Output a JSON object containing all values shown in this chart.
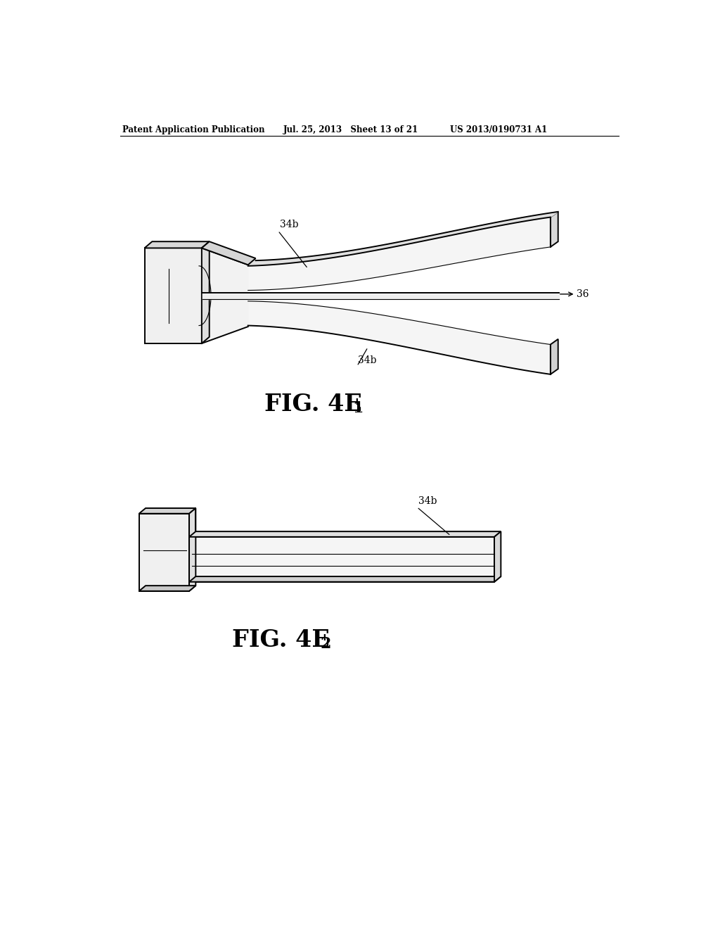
{
  "bg_color": "#ffffff",
  "header_left": "Patent Application Publication",
  "header_center": "Jul. 25, 2013   Sheet 13 of 21",
  "header_right": "US 2013/0190731 A1",
  "fig1_label": "FIG. 4E",
  "fig1_subscript": "1",
  "fig2_label": "FIG. 4E",
  "fig2_subscript": "2",
  "label_34b_top": "34b",
  "label_34b_bot": "34b",
  "label_34b_fig2": "34b",
  "label_36": "36",
  "lc": "#000000",
  "lw_main": 1.4,
  "lw_thin": 0.8,
  "lw_thick": 2.0
}
